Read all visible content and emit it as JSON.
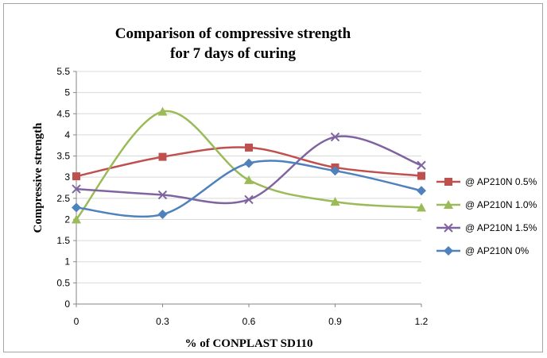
{
  "chart_data": {
    "type": "line",
    "title_lines": [
      "Comparison of compressive strength",
      "for 7 days of curing"
    ],
    "xlabel": "% of CONPLAST SD110",
    "ylabel": "Compressive  strength",
    "x": [
      0,
      0.3,
      0.6,
      0.9,
      1.2
    ],
    "x_tick_labels": [
      "0",
      "0.3",
      "0.6",
      "0.9",
      "1.2"
    ],
    "ylim": [
      0,
      5.5
    ],
    "y_ticks": [
      0,
      0.5,
      1,
      1.5,
      2,
      2.5,
      3,
      3.5,
      4,
      4.5,
      5,
      5.5
    ],
    "y_tick_labels": [
      "0",
      "0.5",
      "1",
      "1.5",
      "2",
      "2.5",
      "3",
      "3.5",
      "4",
      "4.5",
      "5",
      "5.5"
    ],
    "grid": "horizontal",
    "smooth": true,
    "legend_position": "right",
    "series": [
      {
        "name": "@ AP210N  0.5%",
        "values": [
          3.02,
          3.48,
          3.7,
          3.23,
          3.03
        ],
        "color": "#c0504d",
        "marker": "square"
      },
      {
        "name": "@ AP210N  1.0%",
        "values": [
          2.0,
          4.55,
          2.93,
          2.42,
          2.28
        ],
        "color": "#9bbb59",
        "marker": "triangle"
      },
      {
        "name": "@ AP210N  1.5%",
        "values": [
          2.72,
          2.58,
          2.47,
          3.95,
          3.28
        ],
        "color": "#8064a2",
        "marker": "x"
      },
      {
        "name": "@ AP210N 0%",
        "values": [
          2.28,
          2.12,
          3.33,
          3.15,
          2.68
        ],
        "color": "#4f81bd",
        "marker": "diamond"
      }
    ]
  }
}
